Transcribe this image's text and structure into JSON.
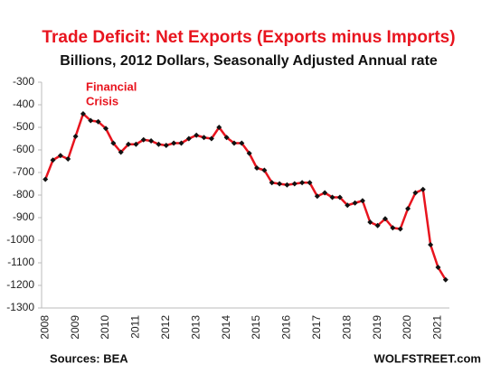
{
  "chart_data": {
    "type": "line",
    "title": "Trade Deficit: Net Exports (Exports minus Imports)",
    "subtitle": "Billions, 2012 Dollars, Seasonally Adjusted Annual rate",
    "annotation": [
      "Financial",
      "Crisis"
    ],
    "source": "Sources: BEA",
    "credit": "WOLFSTREET.com",
    "categories": [
      "2008",
      null,
      null,
      null,
      "2009",
      null,
      null,
      null,
      "2010",
      null,
      null,
      null,
      "2011",
      null,
      null,
      null,
      "2012",
      null,
      null,
      null,
      "2013",
      null,
      null,
      null,
      "2014",
      null,
      null,
      null,
      "2015",
      null,
      null,
      null,
      "2016",
      null,
      null,
      null,
      "2017",
      null,
      null,
      null,
      "2018",
      null,
      null,
      null,
      "2019",
      null,
      null,
      null,
      "2020",
      null,
      null,
      null,
      "2021",
      null
    ],
    "values": [
      -730,
      -645,
      -625,
      -640,
      -540,
      -440,
      -470,
      -475,
      -505,
      -570,
      -610,
      -575,
      -575,
      -555,
      -560,
      -575,
      -580,
      -570,
      -570,
      -550,
      -535,
      -545,
      -550,
      -500,
      -545,
      -570,
      -570,
      -615,
      -680,
      -690,
      -745,
      -750,
      -755,
      -750,
      -745,
      -745,
      -805,
      -790,
      -810,
      -810,
      -845,
      -835,
      -825,
      -920,
      -935,
      -905,
      -945,
      -950,
      -860,
      -790,
      -775,
      -1020,
      -1120,
      -1175
    ],
    "color": "#e8141e",
    "marker_color": "#111111",
    "ylim": [
      -1300,
      -300
    ],
    "yticks": [
      -1300,
      -1200,
      -1100,
      -1000,
      -900,
      -800,
      -700,
      -600,
      -500,
      -400,
      -300
    ],
    "grid": false
  }
}
